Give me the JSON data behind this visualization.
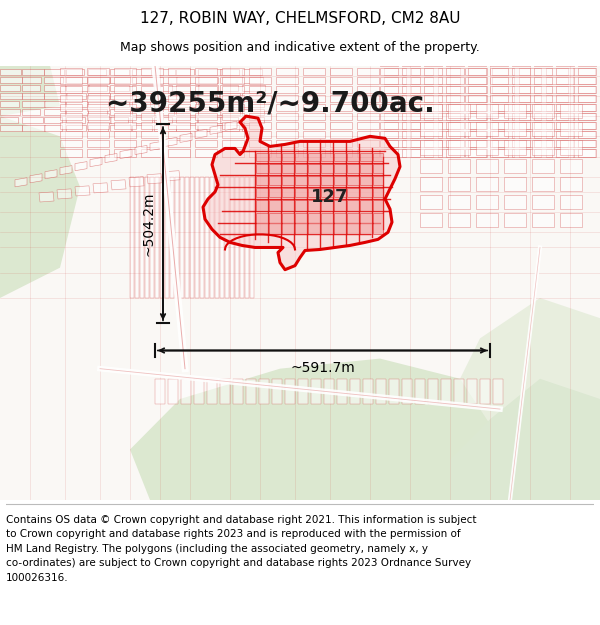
{
  "title_line1": "127, ROBIN WAY, CHELMSFORD, CM2 8AU",
  "title_line2": "Map shows position and indicative extent of the property.",
  "area_text": "~39255m²/~9.700ac.",
  "width_text": "~591.7m",
  "height_text": "~504.2m",
  "label_127": "127",
  "footer_text": "Contains OS data © Crown copyright and database right 2021. This information is subject\nto Crown copyright and database rights 2023 and is reproduced with the permission of\nHM Land Registry. The polygons (including the associated geometry, namely x, y\nco-ordinates) are subject to Crown copyright and database rights 2023 Ordnance Survey\n100026316.",
  "title_fontsize": 11,
  "subtitle_fontsize": 9,
  "area_fontsize": 20,
  "label_fontsize": 13,
  "footer_fontsize": 7.5,
  "map_bg": "#faf8f5",
  "road_color": "#cc3333",
  "road_alpha": 0.55,
  "highlight_color": "#dd0000",
  "fill_color": "#f8c8c8",
  "green_color": "#dce8d0",
  "arrow_color": "#111111"
}
